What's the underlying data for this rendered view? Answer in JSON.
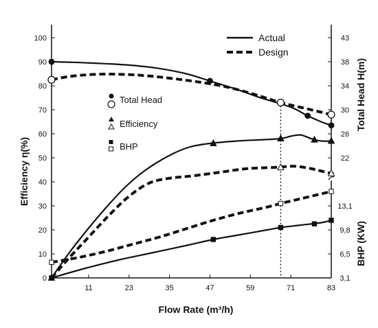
{
  "chart_data": {
    "type": "line",
    "title": "",
    "xlabel": "Flow Rate (m³/h)",
    "ylabel_left": "Efficiency η(%)",
    "ylabel_right_top": "Total Head H(m)",
    "ylabel_right_bottom": "BHP (KW)",
    "x_ticks": [
      "11",
      "23",
      "35",
      "47",
      "59",
      "71",
      "83"
    ],
    "x_tick_values": [
      11,
      23,
      35,
      47,
      59,
      71,
      83
    ],
    "xlim": [
      0,
      83
    ],
    "y_left_ticks": [
      "0",
      "10",
      "20",
      "30",
      "40",
      "50",
      "60",
      "70",
      "80",
      "90",
      "100"
    ],
    "y_left_tick_values": [
      0,
      10,
      20,
      30,
      40,
      50,
      60,
      70,
      80,
      90,
      100
    ],
    "ylim_left": [
      0,
      100
    ],
    "y_right_top_ticks": [
      "22",
      "26",
      "30",
      "34",
      "38",
      "43"
    ],
    "y_right_top_tick_eff": [
      50,
      60,
      70,
      80,
      90,
      100
    ],
    "y_right_bottom_ticks": [
      "3,1",
      "6,5",
      "9,8",
      "13,1"
    ],
    "y_right_bottom_tick_eff": [
      0,
      10,
      20,
      30
    ],
    "axis_break_eff": 42,
    "reference_x": 68,
    "legend": {
      "placement": "top-right",
      "entries": [
        {
          "label": "Actual",
          "style": "solid"
        },
        {
          "label": "Design",
          "style": "dashed"
        }
      ]
    },
    "marker_legend": [
      {
        "label": "Total Head",
        "filled": "circle",
        "open": "circle"
      },
      {
        "label": "Efficiency",
        "filled": "triangle",
        "open": "triangle"
      },
      {
        "label": "BHP",
        "filled": "square",
        "open": "square"
      }
    ],
    "series": [
      {
        "style": "solid",
        "curve": "Total Head",
        "marker": "circle",
        "filled": true,
        "line": [
          [
            0,
            90
          ],
          [
            8,
            89.7
          ],
          [
            16,
            89.2
          ],
          [
            24,
            88.5
          ],
          [
            32,
            87.2
          ],
          [
            40,
            85
          ],
          [
            47,
            82
          ],
          [
            55,
            78.5
          ],
          [
            62,
            75
          ],
          [
            68,
            72.5
          ],
          [
            72,
            70.5
          ],
          [
            76,
            67.5
          ],
          [
            80,
            65
          ],
          [
            83,
            63.5
          ]
        ],
        "markers": [
          [
            0,
            90
          ],
          [
            47,
            82
          ],
          [
            76,
            67.5
          ],
          [
            83,
            63.5
          ]
        ]
      },
      {
        "style": "dashed",
        "curve": "Total Head",
        "marker": "circle",
        "filled": false,
        "line": [
          [
            0,
            82.5
          ],
          [
            5,
            83.8
          ],
          [
            12,
            84.7
          ],
          [
            20,
            84.8
          ],
          [
            28,
            84.2
          ],
          [
            36,
            83
          ],
          [
            44,
            81.5
          ],
          [
            52,
            79.5
          ],
          [
            60,
            76.5
          ],
          [
            68,
            73
          ],
          [
            74,
            71
          ],
          [
            80,
            69
          ],
          [
            83,
            68
          ]
        ],
        "markers": [
          [
            0,
            82.5
          ],
          [
            68,
            73
          ],
          [
            83,
            68
          ]
        ]
      },
      {
        "style": "solid",
        "curve": "Efficiency",
        "marker": "triangle",
        "filled": true,
        "line": [
          [
            0,
            0
          ],
          [
            5,
            10
          ],
          [
            10,
            19
          ],
          [
            16,
            29
          ],
          [
            22,
            38
          ],
          [
            28,
            45
          ],
          [
            35,
            51
          ],
          [
            41,
            54.5
          ],
          [
            47,
            56
          ],
          [
            55,
            57
          ],
          [
            62,
            57.5
          ],
          [
            68,
            58
          ],
          [
            71,
            59
          ],
          [
            74,
            59.5
          ],
          [
            77,
            58
          ],
          [
            80,
            57
          ],
          [
            83,
            57
          ]
        ],
        "markers": [
          [
            0,
            0
          ],
          [
            48,
            56
          ],
          [
            68,
            58
          ],
          [
            78,
            57.5
          ],
          [
            83,
            57
          ]
        ]
      },
      {
        "style": "dashed",
        "curve": "Efficiency",
        "marker": "triangle",
        "filled": false,
        "line": [
          [
            0,
            0
          ],
          [
            5,
            8
          ],
          [
            11,
            17
          ],
          [
            17,
            26
          ],
          [
            23,
            34
          ],
          [
            29,
            39.5
          ],
          [
            35,
            41.5
          ],
          [
            42,
            42.5
          ],
          [
            50,
            44
          ],
          [
            58,
            45.5
          ],
          [
            66,
            46
          ],
          [
            72,
            46.5
          ],
          [
            77,
            45.5
          ],
          [
            80,
            44.5
          ],
          [
            83,
            43.5
          ]
        ],
        "markers": [
          [
            68,
            46
          ],
          [
            83,
            43.5
          ]
        ]
      },
      {
        "style": "solid",
        "curve": "BHP",
        "marker": "square",
        "filled": true,
        "line": [
          [
            0,
            0
          ],
          [
            10,
            4
          ],
          [
            20,
            7.5
          ],
          [
            30,
            10.5
          ],
          [
            40,
            13.5
          ],
          [
            48,
            16
          ],
          [
            56,
            18
          ],
          [
            64,
            20
          ],
          [
            68,
            21
          ],
          [
            74,
            22
          ],
          [
            80,
            23
          ],
          [
            83,
            24
          ]
        ],
        "markers": [
          [
            0,
            0
          ],
          [
            48,
            16
          ],
          [
            68,
            21
          ],
          [
            78,
            22.5
          ],
          [
            83,
            24
          ]
        ]
      },
      {
        "style": "dashed",
        "curve": "BHP",
        "marker": "square",
        "filled": false,
        "line": [
          [
            0,
            6.5
          ],
          [
            8,
            8.5
          ],
          [
            16,
            11
          ],
          [
            24,
            14
          ],
          [
            32,
            17
          ],
          [
            40,
            20.5
          ],
          [
            48,
            24
          ],
          [
            56,
            27
          ],
          [
            64,
            29.5
          ],
          [
            68,
            31
          ],
          [
            74,
            33
          ],
          [
            80,
            35
          ],
          [
            83,
            36
          ]
        ],
        "markers": [
          [
            0,
            6.5
          ],
          [
            68,
            31
          ],
          [
            83,
            36
          ]
        ]
      }
    ]
  }
}
